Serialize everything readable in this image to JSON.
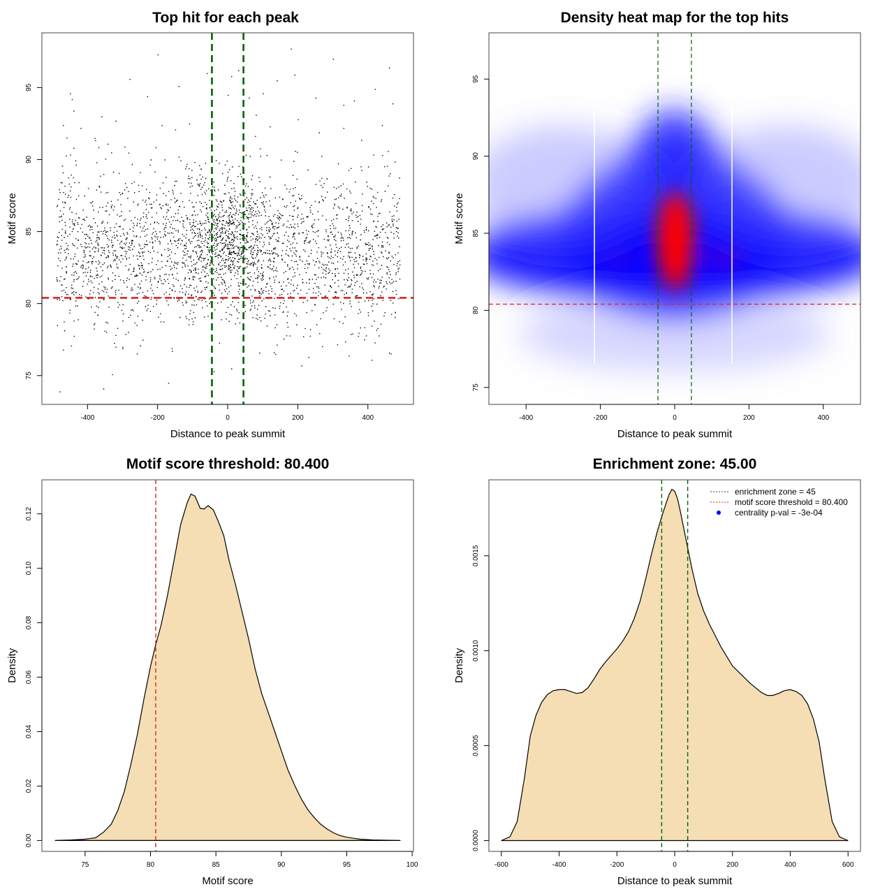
{
  "chart_data": [
    {
      "id": "scatter",
      "type": "scatter",
      "title": "Top hit for each peak",
      "xlabel": "Distance to peak summit",
      "ylabel": "Motif score",
      "xlim": [
        -530,
        530
      ],
      "ylim": [
        73,
        98.8
      ],
      "xticks": [
        -400,
        -200,
        0,
        200,
        400
      ],
      "yticks": [
        75,
        80,
        85,
        90,
        95
      ],
      "hlines": [
        {
          "y": 80.4,
          "color": "#dd2222",
          "style": "dashed"
        }
      ],
      "vlines": [
        {
          "x": -45,
          "color": "#006400",
          "style": "dashed"
        },
        {
          "x": 45,
          "color": "#006400",
          "style": "dashed"
        }
      ],
      "points": [
        [
          -480,
          73.9
        ],
        [
          -355,
          74.1
        ],
        [
          -170,
          74.5
        ],
        [
          -330,
          75.1
        ],
        [
          -40,
          75.3
        ],
        [
          10,
          75.5
        ],
        [
          210,
          75.7
        ],
        [
          410,
          76.1
        ],
        [
          -470,
          76.8
        ],
        [
          -300,
          77.0
        ],
        [
          -160,
          76.9
        ],
        [
          90,
          76.6
        ],
        [
          230,
          76.3
        ],
        [
          345,
          76.4
        ],
        [
          460,
          76.6
        ],
        [
          -250,
          77.1
        ],
        [
          -420,
          92.2
        ],
        [
          -360,
          93.0
        ],
        [
          -280,
          95.6
        ],
        [
          -200,
          97.3
        ],
        [
          -140,
          95.1
        ],
        [
          -60,
          96.0
        ],
        [
          0,
          94.5
        ],
        [
          10,
          95.8
        ],
        [
          30,
          96.2
        ],
        [
          60,
          94.3
        ],
        [
          100,
          94.6
        ],
        [
          140,
          95.5
        ],
        [
          180,
          97.7
        ],
        [
          190,
          95.9
        ],
        [
          250,
          94.3
        ],
        [
          300,
          97.0
        ],
        [
          330,
          93.8
        ],
        [
          360,
          94.1
        ],
        [
          420,
          94.9
        ],
        [
          460,
          96.4
        ],
        [
          470,
          93.9
        ],
        [
          -450,
          94.6
        ],
        [
          -445,
          94.2
        ],
        [
          -230,
          94.4
        ],
        [
          -470,
          92.4
        ],
        [
          -440,
          93.4
        ],
        [
          -380,
          91.5
        ],
        [
          -320,
          92.7
        ],
        [
          -150,
          92.1
        ],
        [
          -110,
          92.5
        ],
        [
          80,
          93.1
        ],
        [
          120,
          92.3
        ],
        [
          200,
          92.8
        ],
        [
          260,
          91.9
        ],
        [
          330,
          92.2
        ],
        [
          440,
          92.4
        ]
      ]
    },
    {
      "id": "heatmap",
      "type": "heatmap",
      "title": "Density heat map for the top hits",
      "xlabel": "Distance to peak summit",
      "ylabel": "Motif score",
      "xlim": [
        -500,
        500
      ],
      "ylim": [
        73.9,
        98
      ],
      "xticks": [
        -400,
        -200,
        0,
        200,
        400
      ],
      "yticks": [
        75,
        80,
        85,
        90,
        95
      ],
      "hlines": [
        {
          "y": 80.4,
          "color": "#dd2222",
          "style": "dashed"
        }
      ],
      "vlines": [
        {
          "x": -45,
          "color": "#006400",
          "style": "dashed"
        },
        {
          "x": 45,
          "color": "#006400",
          "style": "dashed"
        }
      ],
      "colors": [
        "#ffffff",
        "#0000ff",
        "#ff0000"
      ]
    },
    {
      "id": "score_density",
      "type": "area",
      "title": "Motif score threshold: 80.400",
      "xlabel": "Motif score",
      "ylabel": "Density",
      "xlim": [
        71.7,
        100.1
      ],
      "ylim": [
        -0.004,
        0.1325
      ],
      "xticks": [
        75,
        80,
        85,
        90,
        95,
        100
      ],
      "yticks": [
        0.0,
        0.02,
        0.04,
        0.06,
        0.08,
        0.1,
        0.12
      ],
      "ytick_labels": [
        "0.00",
        "0.02",
        "0.04",
        "0.06",
        "0.08",
        "0.10",
        "0.12"
      ],
      "fill": "#f5deb3",
      "vlines": [
        {
          "x": 80.4,
          "color": "#dd2222",
          "style": "dashed"
        }
      ],
      "x": [
        72.7,
        74,
        75,
        75.8,
        76.4,
        77,
        77.5,
        78,
        78.5,
        79,
        79.5,
        80,
        80.4,
        80.8,
        81.3,
        81.8,
        82.3,
        82.8,
        83.1,
        83.4,
        83.8,
        84.1,
        84.4,
        84.8,
        85.2,
        85.6,
        86,
        86.5,
        87,
        87.5,
        88,
        88.5,
        89,
        89.5,
        90,
        90.5,
        91,
        91.5,
        92,
        92.5,
        93,
        93.5,
        94,
        94.5,
        95,
        96,
        97,
        98,
        99.1
      ],
      "y": [
        0.0,
        0.0002,
        0.0005,
        0.001,
        0.003,
        0.006,
        0.011,
        0.018,
        0.028,
        0.039,
        0.052,
        0.064,
        0.072,
        0.079,
        0.09,
        0.103,
        0.116,
        0.124,
        0.1273,
        0.1265,
        0.122,
        0.1218,
        0.123,
        0.1215,
        0.117,
        0.112,
        0.103,
        0.094,
        0.084,
        0.074,
        0.063,
        0.054,
        0.047,
        0.04,
        0.033,
        0.026,
        0.0205,
        0.0155,
        0.0115,
        0.0085,
        0.006,
        0.0042,
        0.0028,
        0.0018,
        0.0012,
        0.0005,
        0.0002,
        0.0001,
        0.0
      ]
    },
    {
      "id": "distance_density",
      "type": "area",
      "title": "Enrichment zone: 45.00",
      "xlabel": "Distance to peak summit",
      "ylabel": "Density",
      "xlim": [
        -643,
        643
      ],
      "ylim": [
        -5.69e-05,
        0.0019
      ],
      "xticks": [
        -600,
        -400,
        -200,
        0,
        200,
        400,
        600
      ],
      "yticks": [
        0.0,
        0.0005,
        0.001,
        0.0015
      ],
      "ytick_labels": [
        "0.0000",
        "0.0005",
        "0.0010",
        "0.0015"
      ],
      "fill": "#f5deb3",
      "vlines": [
        {
          "x": -45,
          "color": "#006400",
          "style": "dashed"
        },
        {
          "x": 45,
          "color": "#006400",
          "style": "dashed"
        }
      ],
      "x": [
        -600,
        -570,
        -545,
        -520,
        -500,
        -480,
        -460,
        -440,
        -420,
        -400,
        -380,
        -360,
        -340,
        -320,
        -300,
        -280,
        -260,
        -240,
        -220,
        -200,
        -180,
        -160,
        -140,
        -120,
        -100,
        -80,
        -60,
        -40,
        -20,
        -10,
        0,
        10,
        20,
        40,
        60,
        80,
        100,
        120,
        140,
        160,
        180,
        200,
        220,
        240,
        260,
        280,
        300,
        320,
        340,
        360,
        380,
        400,
        420,
        440,
        460,
        480,
        500,
        520,
        545,
        570,
        600
      ],
      "y": [
        0.0,
        2e-05,
        0.0001,
        0.00033,
        0.00055,
        0.00066,
        0.00073,
        0.00077,
        0.00079,
        0.000795,
        0.000795,
        0.000785,
        0.000775,
        0.00078,
        0.000805,
        0.00085,
        0.0009,
        0.00094,
        0.000975,
        0.00101,
        0.00105,
        0.0011,
        0.00117,
        0.00126,
        0.00138,
        0.00151,
        0.00163,
        0.00173,
        0.00182,
        0.00185,
        0.00184,
        0.0018,
        0.00173,
        0.00158,
        0.00143,
        0.0013,
        0.00121,
        0.00114,
        0.00108,
        0.00102,
        0.00097,
        0.00092,
        0.00089,
        0.00086,
        0.00083,
        0.000805,
        0.00078,
        0.000765,
        0.000765,
        0.000775,
        0.00079,
        0.000795,
        0.000785,
        0.000765,
        0.00072,
        0.00064,
        0.00052,
        0.00032,
        0.0001,
        2e-05,
        0.0
      ],
      "legend": {
        "position": "top-right",
        "entries": [
          {
            "label": "enrichment zone = 45",
            "color": "#006400",
            "mark": "dotted-line"
          },
          {
            "label": "motif score threshold = 80.400",
            "color": "#dd2222",
            "mark": "dotted-line"
          },
          {
            "label": "centrality p-val = -3e-04",
            "color": "#0000ff",
            "mark": "point"
          }
        ]
      }
    }
  ]
}
